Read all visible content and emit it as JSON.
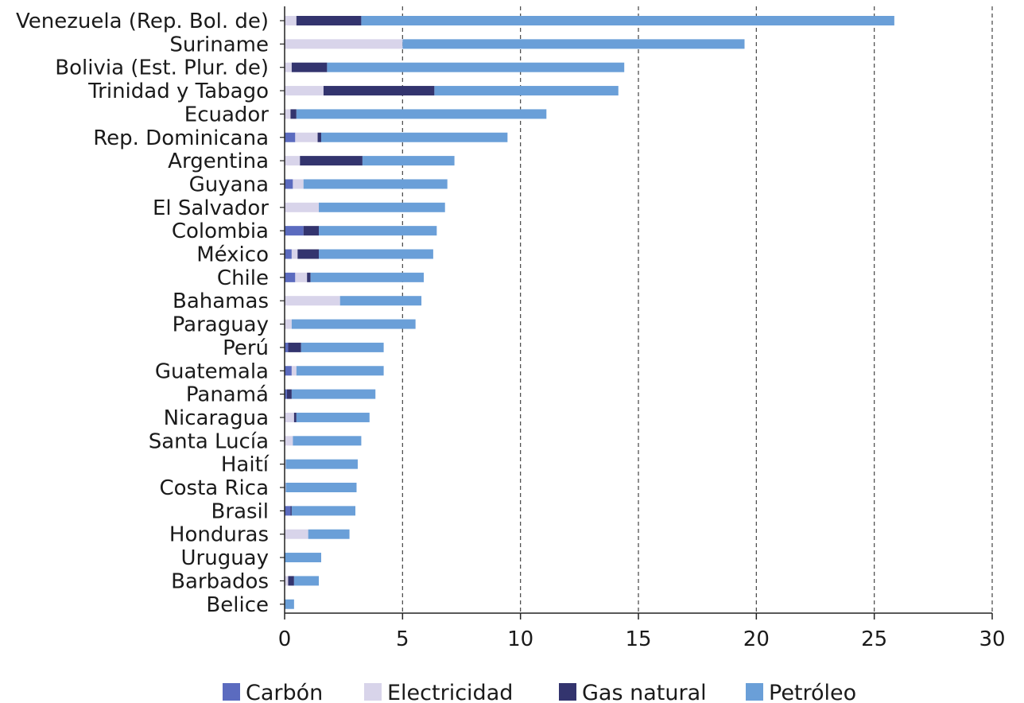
{
  "chart_data": {
    "type": "bar",
    "orientation": "horizontal",
    "stacked": true,
    "categories": [
      "Venezuela (Rep. Bol. de)",
      "Suriname",
      "Bolivia (Est. Plur. de)",
      "Trinidad y Tabago",
      "Ecuador",
      "Rep. Dominicana",
      "Argentina",
      "Guyana",
      "El Salvador",
      "Colombia",
      "México",
      "Chile",
      "Bahamas",
      "Paraguay",
      "Perú",
      "Guatemala",
      "Panamá",
      "Nicaragua",
      "Santa Lucía",
      "Haití",
      "Costa Rica",
      "Brasil",
      "Honduras",
      "Uruguay",
      "Barbados",
      "Belice"
    ],
    "series": [
      {
        "name": "Carbón",
        "color": "#5b6bbf",
        "values": [
          0.0,
          0.0,
          0.0,
          0.0,
          0.0,
          0.45,
          0.0,
          0.35,
          0.0,
          0.8,
          0.3,
          0.45,
          0.0,
          0.0,
          0.15,
          0.3,
          0.1,
          0.0,
          0.0,
          0.0,
          0.0,
          0.25,
          0.0,
          0.0,
          0.0,
          0.0
        ]
      },
      {
        "name": "Electricidad",
        "color": "#d8d4ea",
        "values": [
          0.5,
          5.0,
          0.3,
          1.65,
          0.25,
          0.95,
          0.65,
          0.45,
          1.45,
          0.0,
          0.25,
          0.5,
          2.35,
          0.3,
          0.0,
          0.2,
          0.0,
          0.4,
          0.35,
          0.05,
          0.05,
          0.0,
          1.0,
          0.0,
          0.15,
          0.0
        ]
      },
      {
        "name": "Gas natural",
        "color": "#33346e",
        "values": [
          2.75,
          0.0,
          1.5,
          4.7,
          0.25,
          0.15,
          2.65,
          0.0,
          0.0,
          0.65,
          0.9,
          0.15,
          0.0,
          0.0,
          0.55,
          0.0,
          0.2,
          0.1,
          0.0,
          0.0,
          0.0,
          0.05,
          0.0,
          0.0,
          0.25,
          0.0
        ]
      },
      {
        "name": "Petróleo",
        "color": "#6a9fd8",
        "values": [
          22.6,
          14.5,
          12.6,
          7.8,
          10.6,
          7.9,
          3.9,
          6.1,
          5.35,
          5.0,
          4.85,
          4.8,
          3.45,
          5.25,
          3.5,
          3.7,
          3.55,
          3.1,
          2.9,
          3.05,
          3.0,
          2.7,
          1.75,
          1.55,
          1.05,
          0.4
        ]
      }
    ],
    "xlim": [
      0,
      30
    ],
    "xticks": [
      "0",
      "5",
      "10",
      "15",
      "20",
      "25",
      "30"
    ],
    "grid": "vertical dashed",
    "legend_position": "bottom"
  }
}
